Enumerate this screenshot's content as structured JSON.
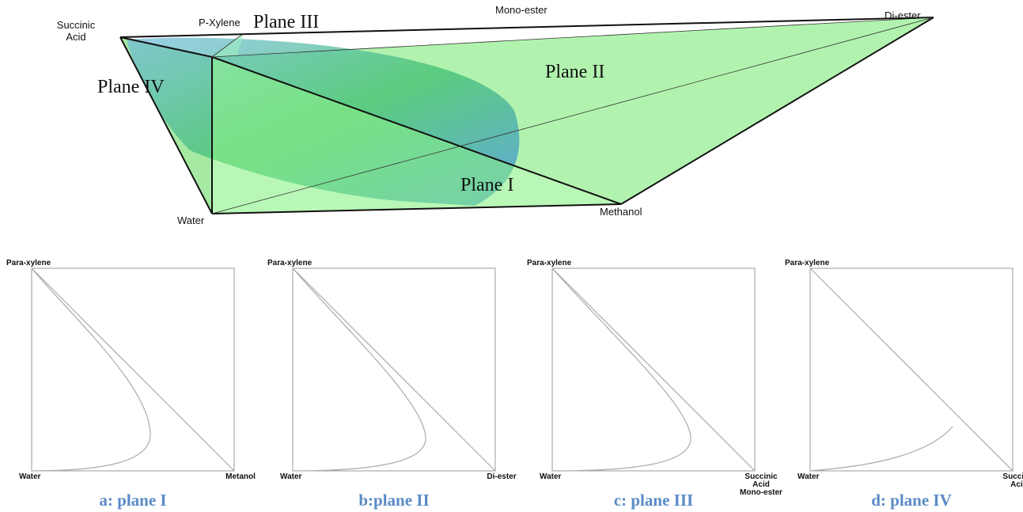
{
  "diagram": {
    "vertices": {
      "succinic_acid": [
        "Succinic",
        "Acid"
      ],
      "p_xylene": "P-Xylene",
      "mono_ester": "Mono-ester",
      "di_ester": "Di-ester",
      "water": "Water",
      "methanol": "Methanol"
    },
    "planes": [
      "Plane I",
      "Plane II",
      "Plane III",
      "Plane IV"
    ]
  },
  "panels": [
    {
      "top": "Para-xylene",
      "left": "Water",
      "right": [
        "Metanol"
      ],
      "caption": "a: plane I"
    },
    {
      "top": "Para-xylene",
      "left": "Water",
      "right": [
        "Di-ester"
      ],
      "caption": "b:plane II"
    },
    {
      "top": "Para-xylene",
      "left": "Water",
      "right": [
        "Succinic",
        "Acid",
        "Mono-ester"
      ],
      "caption": "c: plane III"
    },
    {
      "top": "Para-xylene",
      "left": "Water",
      "right": [
        "Succinic",
        "Acid"
      ],
      "caption": "d: plane IV"
    }
  ]
}
